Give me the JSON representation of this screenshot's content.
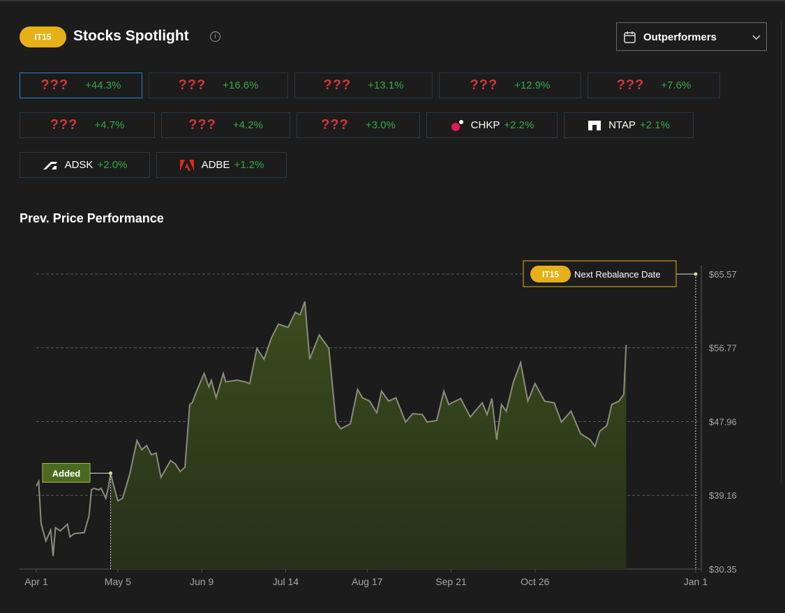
{
  "header": {
    "badge": "IT15",
    "title": "Stocks Spotlight",
    "dropdown": "Outperformers"
  },
  "chips": [
    {
      "ticker": "???",
      "change": "+44.3%"
    },
    {
      "ticker": "???",
      "change": "+16.6%"
    },
    {
      "ticker": "???",
      "change": "+13.1%"
    },
    {
      "ticker": "???",
      "change": "+12.9%"
    },
    {
      "ticker": "???",
      "change": "+7.6%"
    },
    {
      "ticker": "???",
      "change": "+4.7%"
    },
    {
      "ticker": "???",
      "change": "+4.2%"
    },
    {
      "ticker": "???",
      "change": "+3.0%"
    },
    {
      "ticker": "CHKP",
      "change": "+2.2%"
    },
    {
      "ticker": "NTAP",
      "change": "+2.1%"
    },
    {
      "ticker": "ADSK",
      "change": "+2.0%"
    },
    {
      "ticker": "ADBE",
      "change": "+1.2%"
    }
  ],
  "chart_data": {
    "type": "line",
    "title": "Prev. Price Performance",
    "color": "#8c8c7e",
    "x": [
      0,
      1,
      2,
      4,
      6,
      7,
      8,
      10,
      13,
      14,
      16,
      20,
      22,
      23,
      24,
      26,
      27,
      29,
      30,
      31,
      32,
      34,
      36,
      39,
      42,
      44,
      46,
      48,
      50,
      52,
      56,
      58,
      60,
      62,
      64,
      65,
      67,
      70,
      72,
      73,
      75,
      78,
      79,
      84,
      87,
      89,
      92,
      95,
      98,
      101,
      105,
      108,
      110,
      112,
      114,
      118,
      119,
      122,
      125,
      127,
      131,
      134,
      136,
      139,
      142,
      144,
      147,
      150,
      154,
      157,
      161,
      163,
      167,
      170,
      172,
      177,
      181,
      186,
      188,
      190,
      192,
      194,
      196,
      199,
      202,
      205,
      208,
      212,
      216,
      219,
      223,
      227,
      231,
      233,
      235,
      238,
      240,
      243,
      245,
      246
    ],
    "values": [
      40.26,
      40.8,
      35.8,
      33.7,
      35.0,
      31.9,
      35.3,
      34.9,
      35.7,
      34.2,
      34.6,
      34.7,
      36.7,
      39.8,
      40.0,
      39.8,
      40.0,
      38.8,
      40.0,
      41.8,
      40.6,
      38.5,
      38.8,
      41.7,
      45.7,
      44.6,
      45.1,
      44.0,
      44.2,
      41.3,
      43.3,
      42.9,
      42.0,
      42.5,
      50.0,
      50.2,
      51.7,
      53.7,
      52.1,
      52.9,
      50.8,
      53.7,
      52.7,
      52.9,
      52.7,
      52.5,
      56.7,
      55.4,
      57.9,
      59.6,
      59.2,
      61.0,
      60.7,
      62.3,
      55.4,
      58.3,
      57.9,
      56.7,
      47.9,
      47.1,
      47.7,
      51.8,
      50.8,
      50.4,
      49.0,
      51.6,
      50.4,
      50.8,
      47.9,
      48.9,
      48.8,
      47.9,
      48.1,
      51.6,
      50.0,
      50.7,
      48.5,
      50.2,
      48.8,
      50.7,
      45.8,
      50.0,
      49.2,
      52.7,
      55.0,
      50.4,
      52.5,
      50.4,
      50.2,
      47.9,
      49.2,
      46.5,
      45.8,
      45.0,
      46.8,
      47.5,
      50.0,
      50.4,
      51.2,
      57.1
    ],
    "xlim": [
      0,
      275
    ],
    "xticks": [
      {
        "value": 0,
        "label": "Apr 1"
      },
      {
        "value": 34,
        "label": "May 5"
      },
      {
        "value": 69,
        "label": "Jun 9"
      },
      {
        "value": 104,
        "label": "Jul 14"
      },
      {
        "value": 138,
        "label": "Aug 17"
      },
      {
        "value": 173,
        "label": "Sep 21"
      },
      {
        "value": 208,
        "label": "Oct 26"
      },
      {
        "value": 275,
        "label": "Jan 1"
      }
    ],
    "ylim": [
      30.35,
      65.57
    ],
    "yticks": [
      {
        "value": 30.35,
        "label": "$30.35"
      },
      {
        "value": 39.16,
        "label": "$39.16"
      },
      {
        "value": 47.96,
        "label": "$47.96"
      },
      {
        "value": 56.77,
        "label": "$56.77"
      },
      {
        "value": 65.57,
        "label": "$65.57"
      }
    ],
    "grid": true,
    "annotations": [
      {
        "text": "Added",
        "x": 31,
        "y": 41.8
      },
      {
        "badge": "IT15",
        "text": "Next Rebalance Date",
        "x": 275,
        "y": 65.57
      }
    ]
  }
}
